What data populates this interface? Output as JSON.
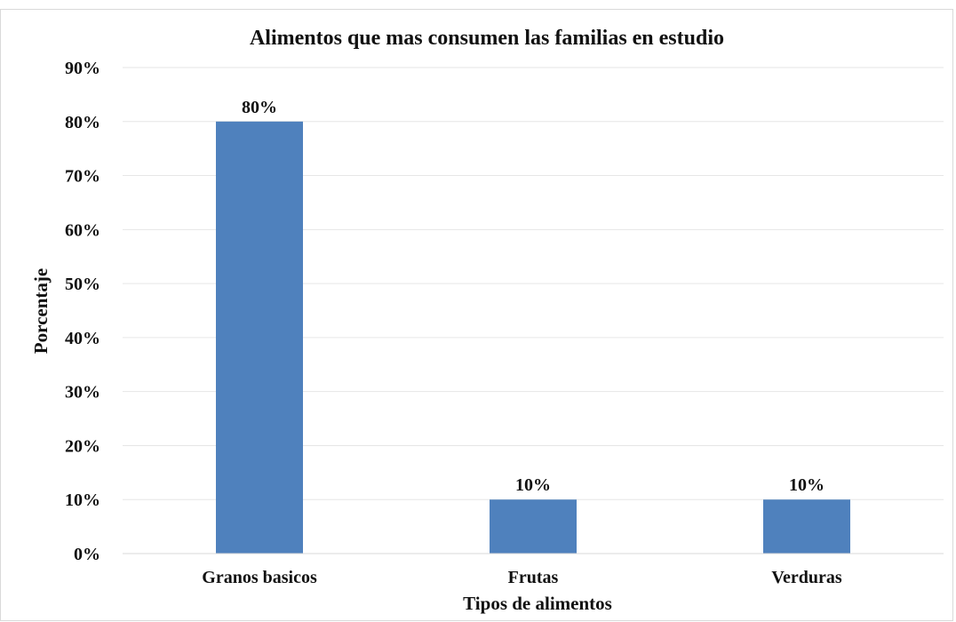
{
  "chart_data": {
    "type": "bar",
    "title": "Alimentos que mas consumen las familias en estudio",
    "xlabel": "Tipos de alimentos",
    "ylabel": "Porcentaje",
    "categories": [
      "Granos basicos",
      "Frutas",
      "Verduras"
    ],
    "values": [
      80,
      10,
      10
    ],
    "data_labels": [
      "80%",
      "10%",
      "10%"
    ],
    "ylim": [
      0,
      90
    ],
    "yticks": [
      0,
      10,
      20,
      30,
      40,
      50,
      60,
      70,
      80,
      90
    ],
    "ytick_labels": [
      "0%",
      "10%",
      "20%",
      "30%",
      "40%",
      "50%",
      "60%",
      "70%",
      "80%",
      "90%"
    ],
    "grid": true,
    "legend": "none",
    "colors": {
      "bar": "#4f81bd",
      "gridline": "#e6e6e6",
      "axis": "#d9d9d9",
      "text": "#111111"
    }
  }
}
